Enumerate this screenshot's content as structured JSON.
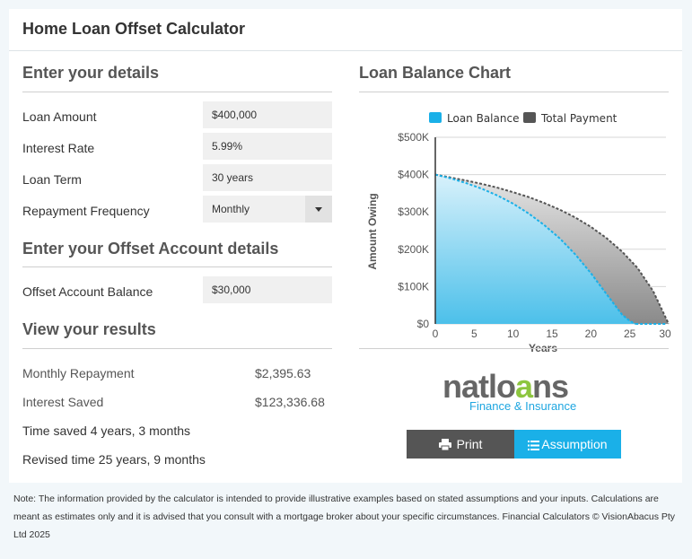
{
  "page": {
    "title": "Home Loan Offset Calculator"
  },
  "details": {
    "heading": "Enter your details",
    "loan_amount_label": "Loan Amount",
    "loan_amount_value": "$400,000",
    "interest_rate_label": "Interest Rate",
    "interest_rate_value": "5.99%",
    "loan_term_label": "Loan Term",
    "loan_term_value": "30 years",
    "repayment_frequency_label": "Repayment Frequency",
    "repayment_frequency_value": "Monthly"
  },
  "offset": {
    "heading": "Enter your Offset Account details",
    "balance_label": "Offset Account Balance",
    "balance_value": "$30,000"
  },
  "results": {
    "heading": "View your results",
    "monthly_repayment_label": "Monthly Repayment",
    "monthly_repayment_value": "$2,395.63",
    "interest_saved_label": "Interest Saved",
    "interest_saved_value": "$123,336.68",
    "time_saved": "Time saved 4 years, 3 months",
    "revised_time": "Revised time 25 years, 9 months"
  },
  "chart": {
    "heading": "Loan Balance Chart"
  },
  "chart_data": {
    "type": "area",
    "title": "",
    "xlabel": "Years",
    "ylabel": "Amount Owing",
    "xlim": [
      0,
      30
    ],
    "ylim": [
      0,
      500000
    ],
    "x_ticks": [
      "0",
      "5",
      "10",
      "15",
      "20",
      "25",
      "30"
    ],
    "y_ticks": [
      "$0",
      "$100K",
      "$200K",
      "$300K",
      "$400K",
      "$500K"
    ],
    "legend_position": "top",
    "grid": true,
    "series": [
      {
        "name": "Loan Balance",
        "color": "#1ab0e8",
        "x": [
          0,
          2,
          4,
          6,
          8,
          10,
          12,
          14,
          16,
          18,
          20,
          22,
          24,
          25,
          25.75
        ],
        "y": [
          400000,
          390000,
          377000,
          362000,
          344000,
          322000,
          296000,
          265000,
          229000,
          186000,
          136000,
          80000,
          25000,
          8000,
          0
        ]
      },
      {
        "name": "Total Payment",
        "color": "#555555",
        "x": [
          0,
          2,
          4,
          6,
          8,
          10,
          12,
          14,
          16,
          18,
          20,
          22,
          24,
          26,
          28,
          30
        ],
        "y": [
          400000,
          392000,
          384000,
          375000,
          365000,
          353000,
          340000,
          324000,
          306000,
          285000,
          260000,
          230000,
          194000,
          150000,
          88000,
          0
        ]
      }
    ]
  },
  "logo": {
    "brand_pre": "natlo",
    "brand_a": "a",
    "brand_post": "ns",
    "tagline": "Finance & Insurance"
  },
  "buttons": {
    "print_label": "Print",
    "print_icon": "printer-icon",
    "assumption_label": "Assumption",
    "assumption_icon": "list-icon"
  },
  "note": {
    "text": "Note: The information provided by the calculator is intended to provide illustrative examples based on stated assumptions and your inputs. Calculations are meant as estimates only and it is advised that you consult with a mortgage broker about your specific circumstances. Financial Calculators © VisionAbacus Pty Ltd 2025"
  }
}
